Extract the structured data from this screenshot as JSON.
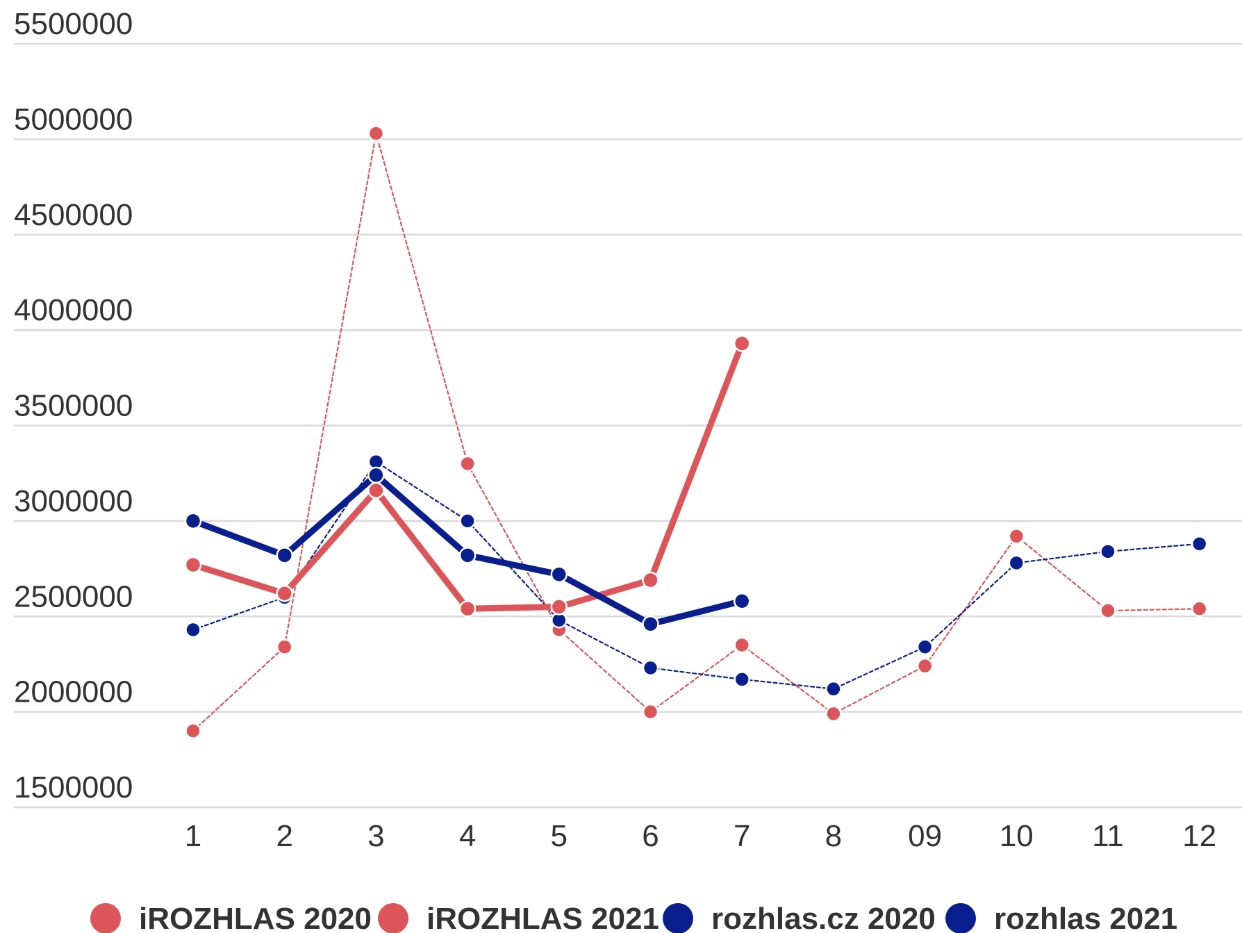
{
  "chart_data": {
    "type": "line",
    "title": "",
    "xlabel": "",
    "ylabel": "",
    "categories": [
      "1",
      "2",
      "3",
      "4",
      "5",
      "6",
      "7",
      "8",
      "09",
      "10",
      "11",
      "12"
    ],
    "ylim": [
      1500000,
      5500000
    ],
    "yticks": [
      1500000,
      2000000,
      2500000,
      3000000,
      3500000,
      4000000,
      4500000,
      5000000,
      5500000
    ],
    "ytick_labels": [
      "1500000",
      "2000000",
      "2500000",
      "3000000",
      "3500000",
      "4000000",
      "4500000",
      "5000000",
      "5500000"
    ],
    "grid": true,
    "legend_position": "bottom",
    "series": [
      {
        "name": "iROZHLAS 2020",
        "color": "#dc5558",
        "style": "dashed-thin",
        "values": [
          1900000,
          2340000,
          5030000,
          3300000,
          2430000,
          2000000,
          2350000,
          1990000,
          2240000,
          2920000,
          2530000,
          2540000
        ]
      },
      {
        "name": "iROZHLAS 2021",
        "color": "#dc5558",
        "style": "solid-thick",
        "values": [
          2770000,
          2620000,
          3160000,
          2540000,
          2550000,
          2690000,
          3930000,
          null,
          null,
          null,
          null,
          null
        ]
      },
      {
        "name": "rozhlas.cz 2020",
        "color": "#0a1f8f",
        "style": "dashed-thin",
        "values": [
          2430000,
          2600000,
          3310000,
          3000000,
          2480000,
          2230000,
          2170000,
          2120000,
          2340000,
          2780000,
          2840000,
          2880000
        ]
      },
      {
        "name": "rozhlas 2021",
        "color": "#0a1f8f",
        "style": "solid-thick",
        "values": [
          3000000,
          2820000,
          3240000,
          2820000,
          2720000,
          2460000,
          2580000,
          null,
          null,
          null,
          null,
          null
        ]
      }
    ]
  }
}
